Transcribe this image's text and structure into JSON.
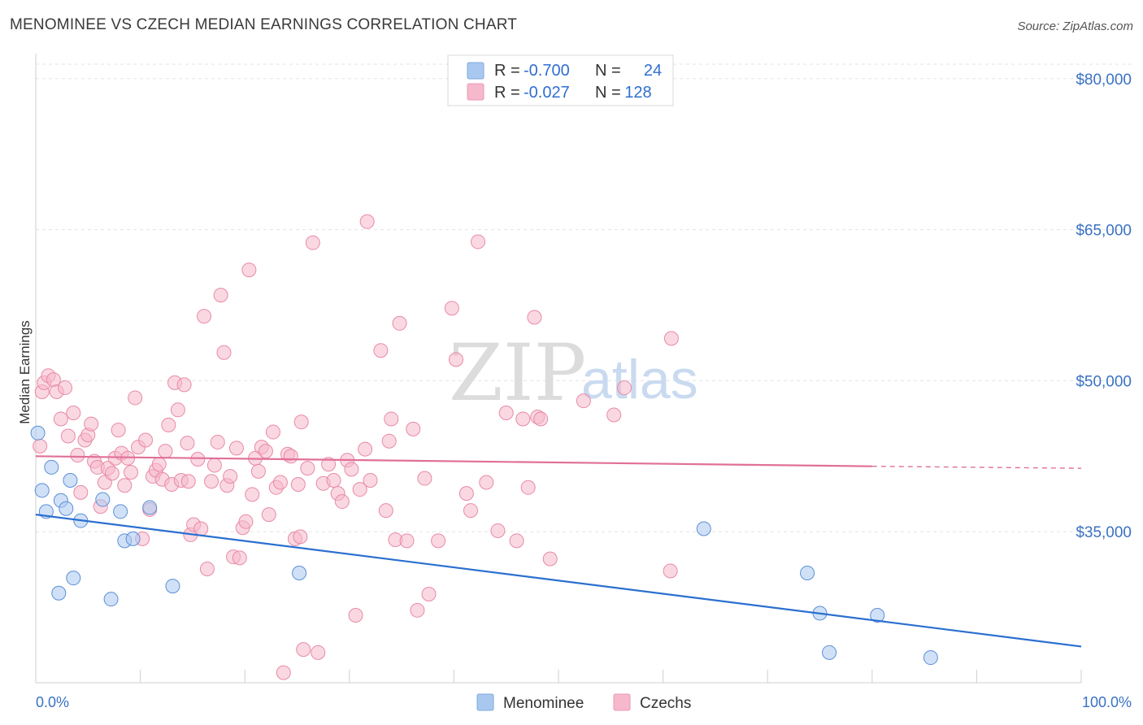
{
  "header": {
    "title": "MENOMINEE VS CZECH MEDIAN EARNINGS CORRELATION CHART",
    "source": "Source: ZipAtlas.com"
  },
  "legend": {
    "rows": [
      {
        "r_label": "R =",
        "r_value": "-0.700",
        "n_label": "N =",
        "n_value": "24",
        "color": "#a9c8f0"
      },
      {
        "r_label": "R =",
        "r_value": "-0.027",
        "n_label": "N =",
        "n_value": "128",
        "color": "#f6b8cb"
      }
    ]
  },
  "bottom_legend": [
    {
      "label": "Menominee",
      "color": "#a9c8f0"
    },
    {
      "label": "Czechs",
      "color": "#f6b8cb"
    }
  ],
  "watermark": {
    "zip": "ZIP",
    "atlas": "atlas"
  },
  "chart_data": {
    "type": "scatter",
    "title": "MENOMINEE VS CZECH MEDIAN EARNINGS CORRELATION CHART",
    "xlabel": "",
    "ylabel": "Median Earnings",
    "xlim": [
      0,
      100
    ],
    "ylim": [
      20000,
      82000
    ],
    "x_tick_labels": [
      "0.0%",
      "100.0%"
    ],
    "y_ticks": [
      {
        "value": 80000,
        "label": "$80,000"
      },
      {
        "value": 65000,
        "label": "$65,000"
      },
      {
        "value": 50000,
        "label": "$50,000"
      },
      {
        "value": 35000,
        "label": "$35,000"
      }
    ],
    "grid": true,
    "series": [
      {
        "name": "Menominee",
        "color": "#a9c8f0",
        "stroke": "#5b8fd6",
        "trend": {
          "x": [
            0,
            100
          ],
          "y": [
            36700,
            23600
          ],
          "color": "#2a6fd0"
        },
        "points": [
          [
            0.2,
            44800
          ],
          [
            0.6,
            39100
          ],
          [
            1.0,
            37000
          ],
          [
            1.5,
            41400
          ],
          [
            2.2,
            28900
          ],
          [
            2.4,
            38100
          ],
          [
            2.9,
            37300
          ],
          [
            3.3,
            40100
          ],
          [
            3.6,
            30400
          ],
          [
            4.3,
            36100
          ],
          [
            6.4,
            38200
          ],
          [
            7.2,
            28300
          ],
          [
            8.1,
            37000
          ],
          [
            8.5,
            34100
          ],
          [
            9.3,
            34300
          ],
          [
            10.9,
            37400
          ],
          [
            13.1,
            29600
          ],
          [
            25.2,
            30900
          ],
          [
            63.9,
            35300
          ],
          [
            73.8,
            30900
          ],
          [
            75.0,
            26900
          ],
          [
            75.9,
            23000
          ],
          [
            80.5,
            26700
          ],
          [
            85.6,
            22500
          ]
        ]
      },
      {
        "name": "Czechs",
        "color": "#f6b8cb",
        "stroke": "#e88aa6",
        "trend": {
          "x": [
            0,
            80
          ],
          "y": [
            42500,
            41500
          ],
          "color": "#e07098",
          "dashed_to": 100,
          "dashed_end_y": 41300
        },
        "points": [
          [
            0.4,
            43500
          ],
          [
            0.6,
            48900
          ],
          [
            0.8,
            49800
          ],
          [
            1.2,
            50500
          ],
          [
            1.7,
            50100
          ],
          [
            2.0,
            48900
          ],
          [
            2.4,
            46200
          ],
          [
            2.8,
            49300
          ],
          [
            3.1,
            44500
          ],
          [
            3.6,
            46800
          ],
          [
            4.0,
            42600
          ],
          [
            4.3,
            38900
          ],
          [
            4.7,
            44100
          ],
          [
            5.0,
            44600
          ],
          [
            5.3,
            45700
          ],
          [
            5.6,
            42000
          ],
          [
            5.9,
            41400
          ],
          [
            6.2,
            37500
          ],
          [
            6.6,
            39900
          ],
          [
            6.9,
            41300
          ],
          [
            7.3,
            40800
          ],
          [
            7.6,
            42300
          ],
          [
            7.9,
            45100
          ],
          [
            8.2,
            42800
          ],
          [
            8.5,
            39600
          ],
          [
            8.8,
            42300
          ],
          [
            9.1,
            40900
          ],
          [
            9.5,
            48300
          ],
          [
            9.8,
            43400
          ],
          [
            10.2,
            34300
          ],
          [
            10.5,
            44100
          ],
          [
            10.9,
            37200
          ],
          [
            11.2,
            40500
          ],
          [
            11.5,
            41100
          ],
          [
            11.8,
            41700
          ],
          [
            12.1,
            40200
          ],
          [
            12.4,
            43000
          ],
          [
            12.7,
            45600
          ],
          [
            13.0,
            39700
          ],
          [
            13.3,
            49800
          ],
          [
            13.6,
            47100
          ],
          [
            13.9,
            40100
          ],
          [
            14.2,
            49600
          ],
          [
            14.5,
            43800
          ],
          [
            14.8,
            34700
          ],
          [
            15.1,
            35700
          ],
          [
            15.5,
            42200
          ],
          [
            15.8,
            35300
          ],
          [
            16.1,
            56400
          ],
          [
            16.4,
            31300
          ],
          [
            16.8,
            40000
          ],
          [
            17.1,
            41600
          ],
          [
            17.4,
            43900
          ],
          [
            17.7,
            58500
          ],
          [
            18.0,
            52800
          ],
          [
            18.3,
            39600
          ],
          [
            18.6,
            40500
          ],
          [
            18.9,
            32500
          ],
          [
            19.2,
            43300
          ],
          [
            19.5,
            32400
          ],
          [
            19.8,
            35400
          ],
          [
            20.1,
            36000
          ],
          [
            20.4,
            61000
          ],
          [
            20.7,
            38700
          ],
          [
            21.0,
            42300
          ],
          [
            21.3,
            41000
          ],
          [
            21.6,
            43400
          ],
          [
            22.0,
            43000
          ],
          [
            22.3,
            36700
          ],
          [
            22.7,
            44900
          ],
          [
            23.0,
            39400
          ],
          [
            23.4,
            39900
          ],
          [
            23.7,
            21000
          ],
          [
            24.1,
            42700
          ],
          [
            24.4,
            42500
          ],
          [
            24.8,
            34300
          ],
          [
            25.1,
            39700
          ],
          [
            25.4,
            45900
          ],
          [
            25.6,
            23300
          ],
          [
            26.0,
            41300
          ],
          [
            26.5,
            63700
          ],
          [
            27.0,
            23000
          ],
          [
            27.5,
            39800
          ],
          [
            28.0,
            41700
          ],
          [
            28.5,
            40100
          ],
          [
            28.9,
            38800
          ],
          [
            29.3,
            38000
          ],
          [
            29.8,
            42100
          ],
          [
            30.2,
            41200
          ],
          [
            30.6,
            26700
          ],
          [
            31.0,
            39200
          ],
          [
            31.5,
            43200
          ],
          [
            32.0,
            40100
          ],
          [
            31.7,
            65800
          ],
          [
            33.0,
            53000
          ],
          [
            33.5,
            37100
          ],
          [
            33.8,
            44000
          ],
          [
            34.0,
            46200
          ],
          [
            34.4,
            34200
          ],
          [
            34.8,
            55700
          ],
          [
            35.5,
            34100
          ],
          [
            36.1,
            45200
          ],
          [
            36.5,
            27200
          ],
          [
            37.2,
            40300
          ],
          [
            37.6,
            28800
          ],
          [
            38.5,
            34100
          ],
          [
            39.8,
            57200
          ],
          [
            40.2,
            52100
          ],
          [
            41.2,
            38800
          ],
          [
            41.6,
            37100
          ],
          [
            42.3,
            63800
          ],
          [
            43.1,
            39900
          ],
          [
            44.2,
            35100
          ],
          [
            45.0,
            46800
          ],
          [
            46.0,
            34100
          ],
          [
            46.6,
            46200
          ],
          [
            47.1,
            39400
          ],
          [
            47.7,
            56300
          ],
          [
            48.0,
            46400
          ],
          [
            48.3,
            46200
          ],
          [
            49.2,
            32300
          ],
          [
            52.4,
            48000
          ],
          [
            55.3,
            46600
          ],
          [
            56.3,
            49300
          ],
          [
            60.7,
            31100
          ],
          [
            60.8,
            54200
          ],
          [
            25.3,
            34500
          ],
          [
            14.6,
            40000
          ]
        ]
      }
    ]
  }
}
